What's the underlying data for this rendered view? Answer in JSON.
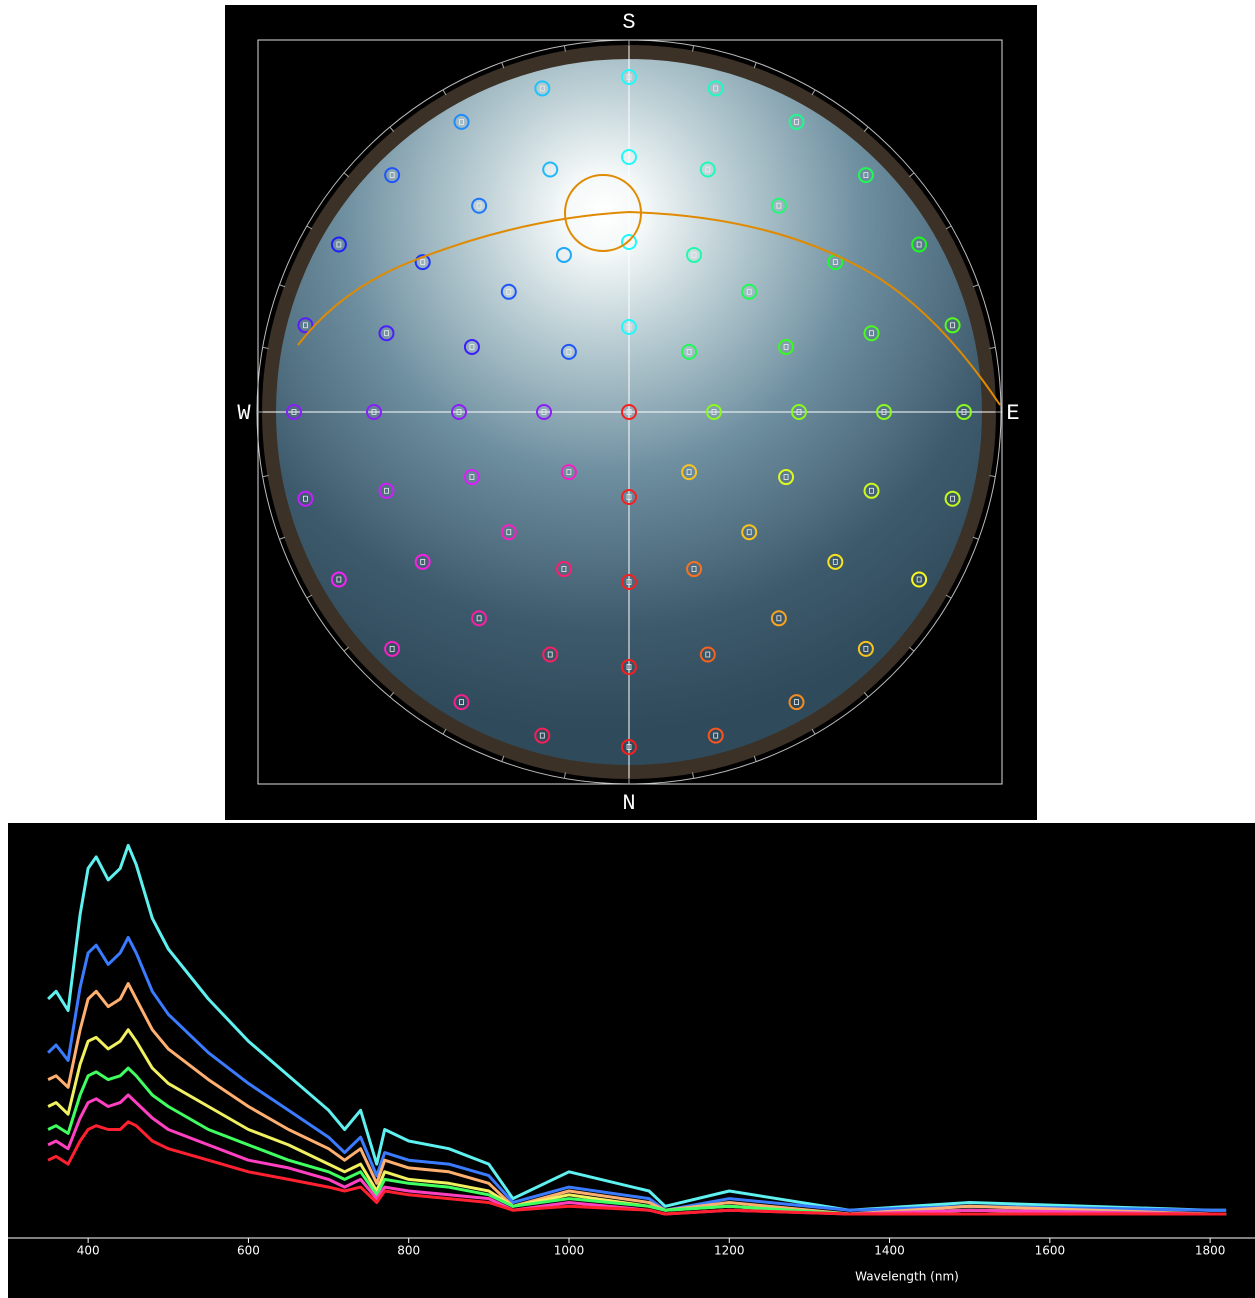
{
  "compass": {
    "top": "S",
    "bottom": "N",
    "left": "W",
    "right": "E"
  },
  "chart_data": {
    "type": "line",
    "x_label": "Wavelength (nm)",
    "x": [
      350,
      360,
      375,
      390,
      400,
      410,
      425,
      440,
      450,
      460,
      480,
      500,
      550,
      600,
      650,
      700,
      720,
      740,
      760,
      770,
      800,
      850,
      900,
      930,
      1000,
      1100,
      1120,
      1200,
      1350,
      1500,
      1800,
      1820
    ],
    "xlim": [
      300,
      1856
    ],
    "xticks": [
      400,
      600,
      800,
      1000,
      1200,
      1400,
      1600,
      1800
    ],
    "ylim": [
      0,
      100
    ],
    "series": [
      {
        "color": "#5ff0f0",
        "values": [
          56,
          58,
          53,
          78,
          90,
          93,
          87,
          90,
          96,
          91,
          77,
          69,
          56,
          45,
          36,
          27,
          22,
          27,
          13,
          22,
          19,
          17,
          13,
          4,
          11,
          6,
          2,
          6,
          1,
          3,
          1,
          1
        ]
      },
      {
        "color": "#3a7bff",
        "values": [
          42,
          44,
          40,
          59,
          68,
          70,
          65,
          68,
          72,
          68,
          58,
          52,
          42,
          34,
          27,
          20,
          16,
          20,
          10,
          16,
          14,
          13,
          10,
          3,
          7,
          4,
          1,
          4,
          1,
          2,
          1,
          1
        ]
      },
      {
        "color": "#ffb070",
        "values": [
          35,
          36,
          33,
          48,
          56,
          58,
          54,
          56,
          60,
          56,
          48,
          43,
          35,
          28,
          22,
          17,
          14,
          17,
          8,
          14,
          12,
          11,
          8,
          2,
          6,
          3,
          1,
          3,
          0,
          2,
          0,
          0
        ]
      },
      {
        "color": "#f0f060",
        "values": [
          28,
          29,
          26,
          39,
          45,
          46,
          43,
          45,
          48,
          45,
          38,
          34,
          28,
          22,
          18,
          13,
          11,
          13,
          6,
          11,
          9,
          8,
          6,
          2,
          5,
          2,
          1,
          2,
          0,
          1,
          0,
          0
        ]
      },
      {
        "color": "#40ff60",
        "values": [
          22,
          23,
          21,
          31,
          36,
          37,
          35,
          36,
          38,
          36,
          31,
          28,
          22,
          18,
          14,
          11,
          9,
          11,
          5,
          9,
          8,
          7,
          5,
          2,
          4,
          2,
          1,
          2,
          0,
          1,
          0,
          0
        ]
      },
      {
        "color": "#ff40c0",
        "values": [
          18,
          19,
          17,
          25,
          29,
          30,
          28,
          29,
          31,
          29,
          25,
          22,
          18,
          14,
          12,
          9,
          7,
          9,
          4,
          7,
          6,
          5,
          4,
          1,
          3,
          1,
          0,
          1,
          0,
          1,
          0,
          0
        ]
      },
      {
        "color": "#ff2030",
        "values": [
          14,
          15,
          13,
          19,
          22,
          23,
          22,
          22,
          24,
          23,
          19,
          17,
          14,
          11,
          9,
          7,
          6,
          7,
          3,
          6,
          5,
          4,
          3,
          1,
          2,
          1,
          0,
          1,
          0,
          0,
          0,
          0
        ]
      }
    ]
  }
}
